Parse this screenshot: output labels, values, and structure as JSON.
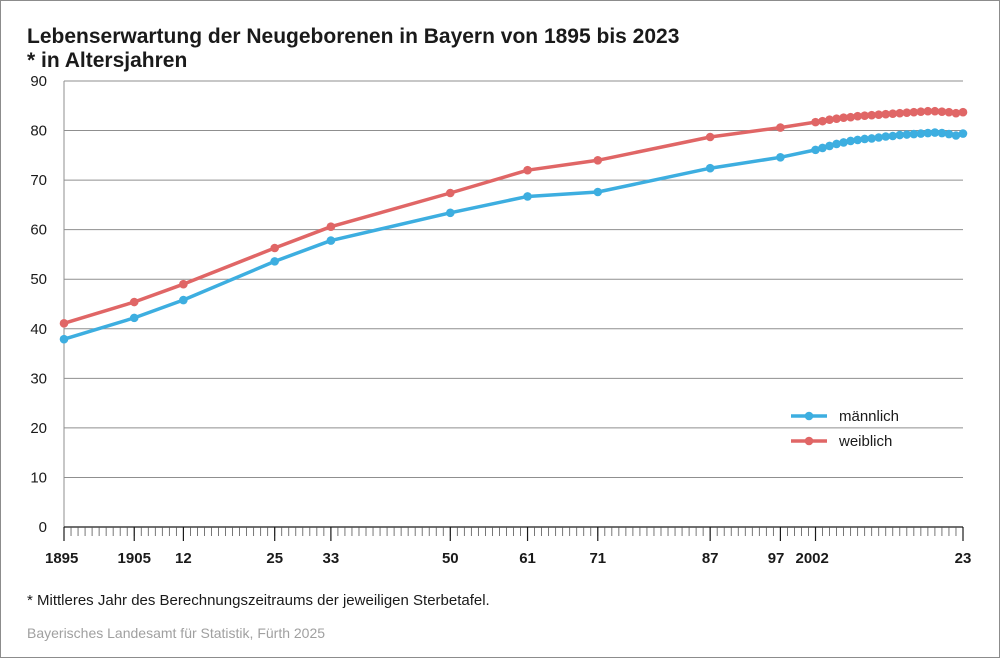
{
  "title": "Lebenserwartung der Neugeborenen in Bayern von 1895 bis 2023",
  "subtitle": "* in Altersjahren",
  "footnote": "* Mittleres Jahr des Berechnungszeitraums der jeweiligen Sterbetafel.",
  "source": "Bayerisches Landesamt für Statistik, Fürth 2025",
  "chart_data": {
    "type": "line",
    "title": "Lebenserwartung der Neugeborenen in Bayern von 1895 bis 2023",
    "subtitle": "* in Altersjahren",
    "xlim": [
      1895,
      2023
    ],
    "ylim": [
      0,
      90
    ],
    "yticks": [
      0,
      10,
      20,
      30,
      40,
      50,
      60,
      70,
      80,
      90
    ],
    "xticks": [
      {
        "value": 1895,
        "label": "1895"
      },
      {
        "value": 1905,
        "label": "1905"
      },
      {
        "value": 1912,
        "label": "12"
      },
      {
        "value": 1925,
        "label": "25"
      },
      {
        "value": 1933,
        "label": "33"
      },
      {
        "value": 1950,
        "label": "50"
      },
      {
        "value": 1961,
        "label": "61"
      },
      {
        "value": 1971,
        "label": "71"
      },
      {
        "value": 1987,
        "label": "87"
      },
      {
        "value": 1997,
        "label": "97"
      },
      {
        "value": 2002,
        "label": "2002"
      },
      {
        "value": 2023,
        "label": "23"
      }
    ],
    "grid": "horizontal",
    "legend_position": "right",
    "series": [
      {
        "name": "männlich",
        "color": "#3daee0",
        "points": [
          [
            1895,
            37.9
          ],
          [
            1905,
            42.2
          ],
          [
            1912,
            45.8
          ],
          [
            1925,
            53.6
          ],
          [
            1933,
            57.8
          ],
          [
            1950,
            63.4
          ],
          [
            1961,
            66.7
          ],
          [
            1971,
            67.6
          ],
          [
            1987,
            72.4
          ],
          [
            1997,
            74.6
          ],
          [
            2002,
            76.1
          ],
          [
            2003,
            76.5
          ],
          [
            2004,
            76.9
          ],
          [
            2005,
            77.3
          ],
          [
            2006,
            77.6
          ],
          [
            2007,
            77.9
          ],
          [
            2008,
            78.1
          ],
          [
            2009,
            78.3
          ],
          [
            2010,
            78.4
          ],
          [
            2011,
            78.6
          ],
          [
            2012,
            78.8
          ],
          [
            2013,
            78.9
          ],
          [
            2014,
            79.1
          ],
          [
            2015,
            79.2
          ],
          [
            2016,
            79.3
          ],
          [
            2017,
            79.4
          ],
          [
            2018,
            79.5
          ],
          [
            2019,
            79.6
          ],
          [
            2020,
            79.5
          ],
          [
            2021,
            79.3
          ],
          [
            2022,
            79.0
          ],
          [
            2023,
            79.4
          ]
        ]
      },
      {
        "name": "weiblich",
        "color": "#e06666",
        "points": [
          [
            1895,
            41.1
          ],
          [
            1905,
            45.4
          ],
          [
            1912,
            49.0
          ],
          [
            1925,
            56.3
          ],
          [
            1933,
            60.6
          ],
          [
            1950,
            67.4
          ],
          [
            1961,
            72.0
          ],
          [
            1971,
            74.0
          ],
          [
            1987,
            78.7
          ],
          [
            1997,
            80.6
          ],
          [
            2002,
            81.7
          ],
          [
            2003,
            81.9
          ],
          [
            2004,
            82.2
          ],
          [
            2005,
            82.4
          ],
          [
            2006,
            82.6
          ],
          [
            2007,
            82.7
          ],
          [
            2008,
            82.9
          ],
          [
            2009,
            83.0
          ],
          [
            2010,
            83.1
          ],
          [
            2011,
            83.2
          ],
          [
            2012,
            83.3
          ],
          [
            2013,
            83.4
          ],
          [
            2014,
            83.5
          ],
          [
            2015,
            83.6
          ],
          [
            2016,
            83.7
          ],
          [
            2017,
            83.8
          ],
          [
            2018,
            83.9
          ],
          [
            2019,
            83.9
          ],
          [
            2020,
            83.8
          ],
          [
            2021,
            83.7
          ],
          [
            2022,
            83.5
          ],
          [
            2023,
            83.7
          ]
        ]
      }
    ]
  }
}
